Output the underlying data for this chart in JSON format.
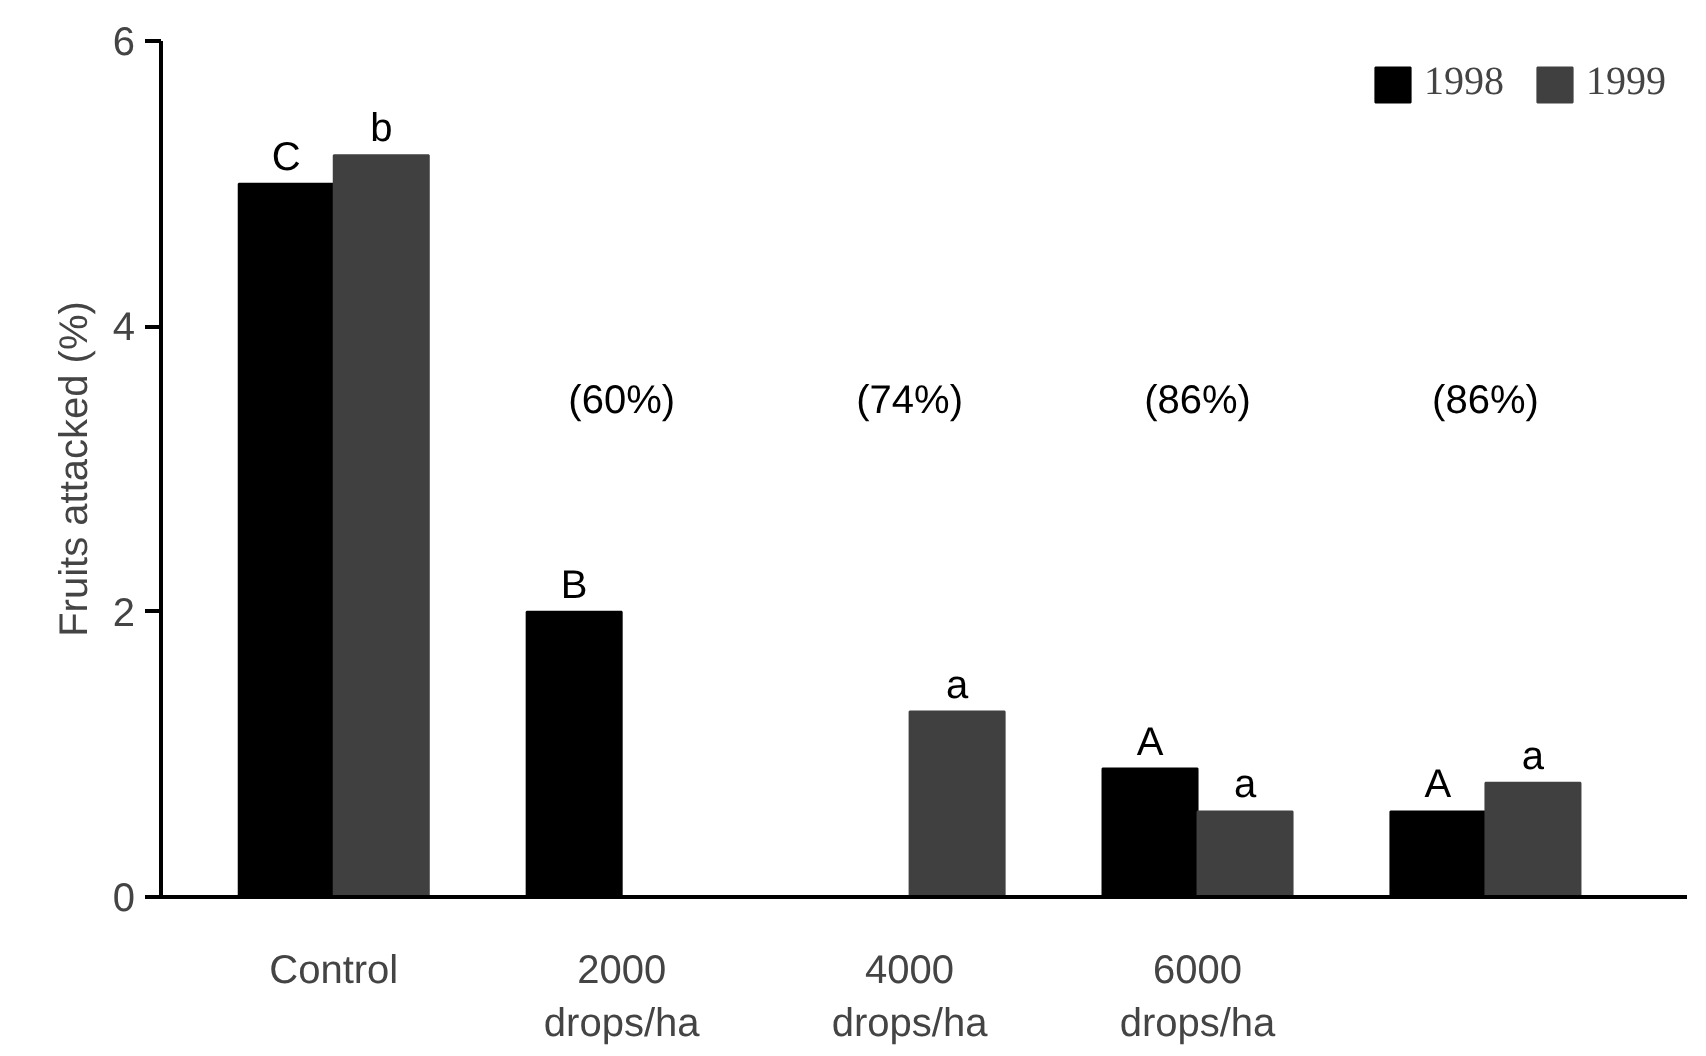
{
  "chart_data": {
    "type": "bar",
    "ylabel": "Fruits attacked (%)",
    "categories": [
      "Control",
      "2000\ndrops/ha",
      "4000\ndrops/ha",
      "6000\ndrops/ha",
      null
    ],
    "series": [
      {
        "name": "1998",
        "color": "#000000",
        "values": [
          5.0,
          2.0,
          null,
          0.9,
          0.6
        ],
        "value_labels": [
          "C",
          "B",
          null,
          "A",
          "A"
        ]
      },
      {
        "name": "1999",
        "color": "#404040",
        "values": [
          5.2,
          null,
          1.3,
          0.6,
          0.8
        ],
        "value_labels": [
          "b",
          null,
          "a",
          "a",
          "a"
        ]
      }
    ],
    "annotations": [
      "(60%)",
      "(74%)",
      "(86%)",
      "(86%)"
    ],
    "ylim": [
      0,
      6
    ],
    "yticks": [
      0,
      2,
      4,
      6
    ],
    "grid": false,
    "legend": "top right"
  }
}
